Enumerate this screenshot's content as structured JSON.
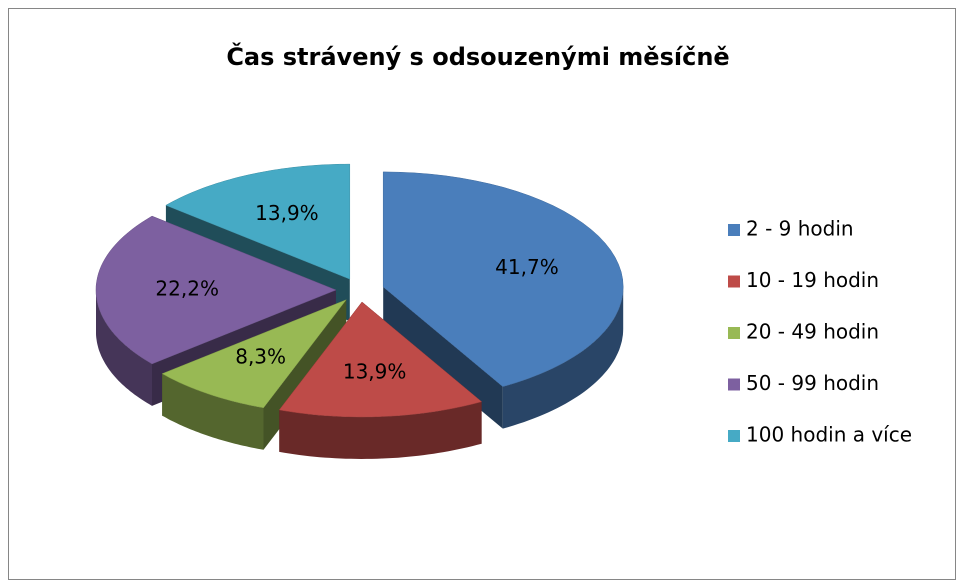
{
  "chart_data": {
    "type": "pie3d",
    "title": "Čas strávený s odsouzenými měsíčně",
    "categories": [
      "2 - 9 hodin",
      "10 - 19 hodin",
      "20 - 49 hodin",
      "50 - 99 hodin",
      "100 hodin a více"
    ],
    "values": [
      41.7,
      13.9,
      8.3,
      22.2,
      13.9
    ],
    "value_labels": [
      "41,7%",
      "13,9%",
      "8,3%",
      "22,2%",
      "13,9%"
    ],
    "colors": [
      "#4a7ebb",
      "#be4b48",
      "#98b954",
      "#7d60a0",
      "#46aac5"
    ],
    "legend": "right"
  }
}
